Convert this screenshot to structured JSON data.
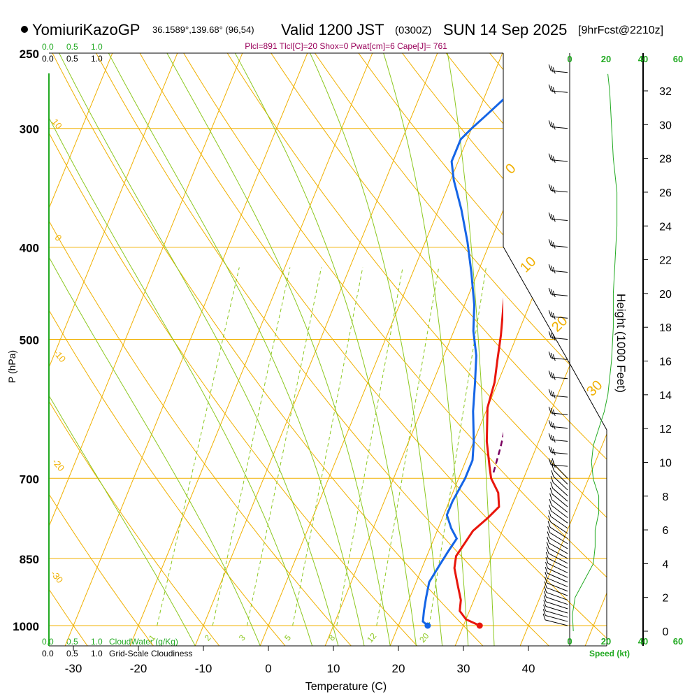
{
  "header": {
    "station": "YomiuriKazoGP",
    "coords": "36.1589°,139.68° (96,54)",
    "valid": "Valid 1200 JST",
    "zulu": "(0300Z)",
    "date": "SUN 14 Sep 2025",
    "forecast": "[9hrFcst@2210z]",
    "indices": "Plcl=891 Tlcl[C]=20 Shox=0 Pwat[cm]=6 Cape[J]= 761"
  },
  "colors": {
    "temp": "#e8160c",
    "dew": "#1565e6",
    "parcel": "#7a0060",
    "isotherm": "#f0b000",
    "dry_adiabat": "#f0b000",
    "moist_adiabat": "#8cc820",
    "mixing": "#8cc820",
    "green_text": "#22aa22",
    "purple_text": "#99005a"
  },
  "chart_data": {
    "type": "line",
    "title": "Skew-T Log-P Sounding",
    "xlabel": "Temperature (C)",
    "ylabel": "P (hPa)",
    "right_label": "Height (1000 Feet)",
    "x_ticks": [
      "-30",
      "-20",
      "-10",
      "0",
      "10",
      "20",
      "30",
      "40"
    ],
    "x_tick_values": [
      -30,
      -20,
      -10,
      0,
      10,
      20,
      30,
      40
    ],
    "p_ticks": [
      "250",
      "300",
      "400",
      "500",
      "700",
      "850",
      "1000"
    ],
    "p_tick_values": [
      250,
      300,
      400,
      500,
      700,
      850,
      1000
    ],
    "height_ticks": [
      "0",
      "2",
      "4",
      "6",
      "8",
      "10",
      "12",
      "14",
      "16",
      "18",
      "20",
      "22",
      "24",
      "26",
      "28",
      "30",
      "32"
    ],
    "height_tick_values": [
      0,
      2,
      4,
      6,
      8,
      10,
      12,
      14,
      16,
      18,
      20,
      22,
      24,
      26,
      28,
      30,
      32
    ],
    "xlim": [
      -34,
      46
    ],
    "ylim": [
      1000,
      250
    ],
    "skew_at_250": 36,
    "series": [
      {
        "name": "Temperature",
        "style": "solid",
        "points": [
          [
            32.5,
            1000
          ],
          [
            30,
            985
          ],
          [
            28.5,
            965
          ],
          [
            28,
            940
          ],
          [
            26.5,
            905
          ],
          [
            25,
            870
          ],
          [
            24.5,
            845
          ],
          [
            25,
            820
          ],
          [
            25.5,
            795
          ],
          [
            27,
            770
          ],
          [
            28,
            750
          ],
          [
            27,
            725
          ],
          [
            25,
            700
          ],
          [
            24,
            680
          ],
          [
            22,
            640
          ],
          [
            20,
            590
          ],
          [
            19.5,
            555
          ],
          [
            18.5,
            525
          ],
          [
            17.5,
            495
          ],
          [
            16,
            460
          ],
          [
            14.5,
            425
          ],
          [
            12.5,
            385
          ],
          [
            11,
            350
          ],
          [
            10,
            325
          ],
          [
            8.5,
            300
          ],
          [
            7,
            282
          ],
          [
            5.5,
            265
          ]
        ]
      },
      {
        "name": "Dewpoint",
        "style": "solid",
        "points": [
          [
            24.5,
            1000
          ],
          [
            23.5,
            990
          ],
          [
            23,
            965
          ],
          [
            22.5,
            935
          ],
          [
            22,
            900
          ],
          [
            22.5,
            865
          ],
          [
            23,
            835
          ],
          [
            23.5,
            810
          ],
          [
            22,
            790
          ],
          [
            20.5,
            765
          ],
          [
            20.5,
            740
          ],
          [
            21,
            700
          ],
          [
            21,
            670
          ],
          [
            20,
            640
          ],
          [
            18,
            595
          ],
          [
            16.5,
            555
          ],
          [
            15,
            520
          ],
          [
            13,
            490
          ],
          [
            11.5,
            460
          ],
          [
            9,
            425
          ],
          [
            6.5,
            395
          ],
          [
            3.5,
            365
          ],
          [
            0.5,
            340
          ],
          [
            -1,
            325
          ],
          [
            -1,
            308
          ],
          [
            0,
            300
          ],
          [
            1.5,
            290
          ],
          [
            3,
            280
          ],
          [
            4,
            270
          ],
          [
            4.5,
            265
          ]
        ]
      },
      {
        "name": "Parcel",
        "style": "dashed",
        "points": [
          [
            25,
            690
          ],
          [
            24.5,
            650
          ],
          [
            23.8,
            610
          ],
          [
            23.5,
            580
          ],
          [
            22.8,
            545
          ],
          [
            22,
            515
          ],
          [
            21,
            480
          ],
          [
            20,
            445
          ],
          [
            19,
            410
          ],
          [
            18,
            380
          ],
          [
            17,
            355
          ],
          [
            15.5,
            330
          ],
          [
            14,
            310
          ],
          [
            13,
            295
          ],
          [
            12,
            278
          ],
          [
            11,
            265
          ]
        ]
      }
    ],
    "surface_points": [
      {
        "name": "Temperature",
        "value": 32.5,
        "pressure": 1000
      },
      {
        "name": "Dewpoint",
        "value": 24.5,
        "pressure": 1000
      }
    ],
    "isotherm_labels": [
      "0",
      "10",
      "20",
      "30"
    ],
    "isotherm_label_values": [
      0,
      10,
      20,
      30
    ],
    "dry_adiabat_labels": [
      "10",
      "0",
      "-10",
      "-20",
      "-30"
    ],
    "dry_adiabat_label_values": [
      10,
      0,
      -10,
      -20,
      -30
    ],
    "mixing_ratio_labels": [
      "1",
      "2",
      "3",
      "5",
      "8",
      "12",
      "20"
    ],
    "mixing_ratio_label_values": [
      1,
      2,
      3,
      5,
      8,
      12,
      20
    ],
    "wind_profile": {
      "label": "Speed (kt)",
      "scale_ticks": [
        "0",
        "20",
        "40",
        "60"
      ],
      "scale_values": [
        0,
        20,
        40,
        60
      ],
      "points": [
        [
          2,
          0
        ],
        [
          1.5,
          1
        ],
        [
          3,
          2
        ],
        [
          8,
          3
        ],
        [
          13,
          4
        ],
        [
          14,
          5
        ],
        [
          14,
          6
        ],
        [
          16,
          7
        ],
        [
          16,
          8
        ],
        [
          13,
          9
        ],
        [
          12,
          10
        ],
        [
          13,
          11
        ],
        [
          16,
          12
        ],
        [
          19,
          13
        ],
        [
          21,
          14
        ],
        [
          22,
          15
        ],
        [
          23,
          16
        ],
        [
          24,
          18
        ],
        [
          24,
          20
        ],
        [
          25,
          22
        ],
        [
          26,
          24
        ],
        [
          26,
          26
        ],
        [
          24,
          28
        ],
        [
          23,
          30
        ],
        [
          22,
          32
        ],
        [
          21,
          33
        ]
      ]
    },
    "cloud_water_scale": {
      "label": "CloudWater (g/Kg)",
      "ticks": [
        "0.0",
        "0.5",
        "1.0"
      ]
    },
    "cloudiness_scale": {
      "label": "Grid-Scale Cloudiness",
      "ticks": [
        "0.0",
        "0.5",
        "1.0"
      ]
    },
    "wind_barb_levels": [
      1000,
      990,
      980,
      970,
      960,
      950,
      940,
      930,
      920,
      910,
      900,
      890,
      880,
      870,
      860,
      850,
      840,
      830,
      820,
      810,
      800,
      790,
      780,
      770,
      760,
      750,
      740,
      730,
      720,
      710,
      700,
      680,
      660,
      640,
      620,
      600,
      575,
      550,
      525,
      500,
      475,
      450,
      425,
      400,
      375,
      350,
      325,
      300,
      275,
      262
    ]
  }
}
